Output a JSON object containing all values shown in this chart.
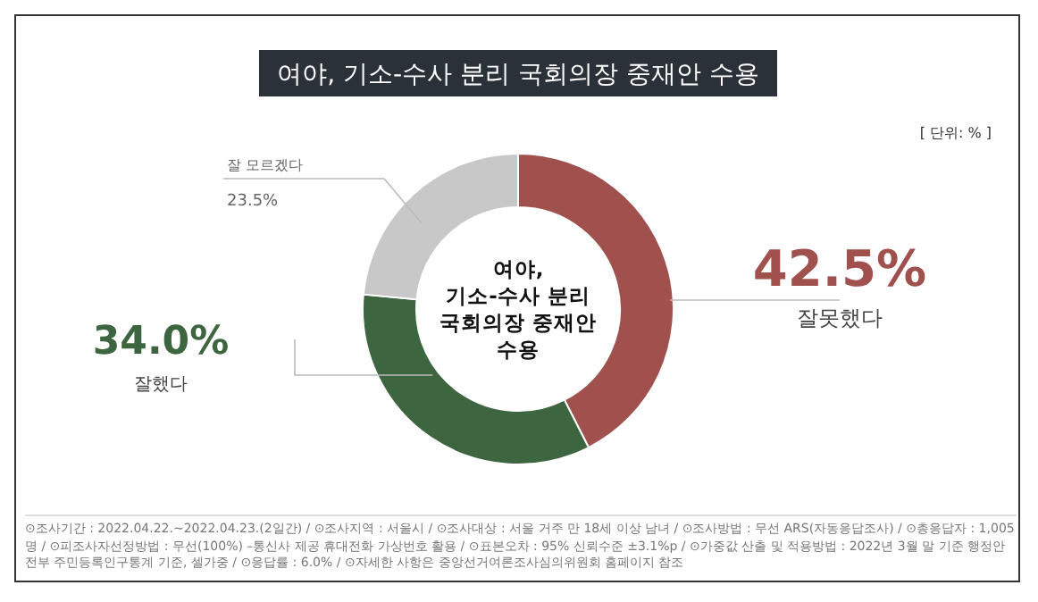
{
  "chart_data": {
    "type": "donut",
    "title": "여야, 기소-수사 분리 국회의장 중재안 수용",
    "categories": [
      "잘못했다",
      "잘했다",
      "잘 모르겠다"
    ],
    "values": [
      42.5,
      34.0,
      23.5
    ],
    "colors": [
      "#a0504d",
      "#3d6540",
      "#c8c8c8"
    ],
    "value_labels": [
      "42.5%",
      "34.0%",
      "23.5%"
    ],
    "annotations": [
      "[ 단위: % ]",
      "여야,\n기소-수사 분리\n국회의장 중재안\n수용",
      "⊙조사기간 : 2022.04.22.~2022.04.23.(2일간) / ⊙조사지역 : 서울시 / ⊙조사대상 : 서울 거주 만 18세 이상 남녀 / ⊙조사방법 : 무선 ARS(자동응답조사) / ⊙총응답자 : 1,005명 / ⊙피조사자선정방법 : 무선(100%) –통신사 제공 휴대전화 가상번호 활용 / ⊙표본오차 : 95% 신뢰수준 ±3.1%p / ⊙가중값 산출 및 적용방법 : 2022년 3월 말 기준 행정안전부 주민등록인구통계 기준, 셀가중 / ⊙응답률 : 6.0% / ⊙자세한 사항은 중앙선거여론조사심의위원회 홈페이지 참조"
    ]
  }
}
